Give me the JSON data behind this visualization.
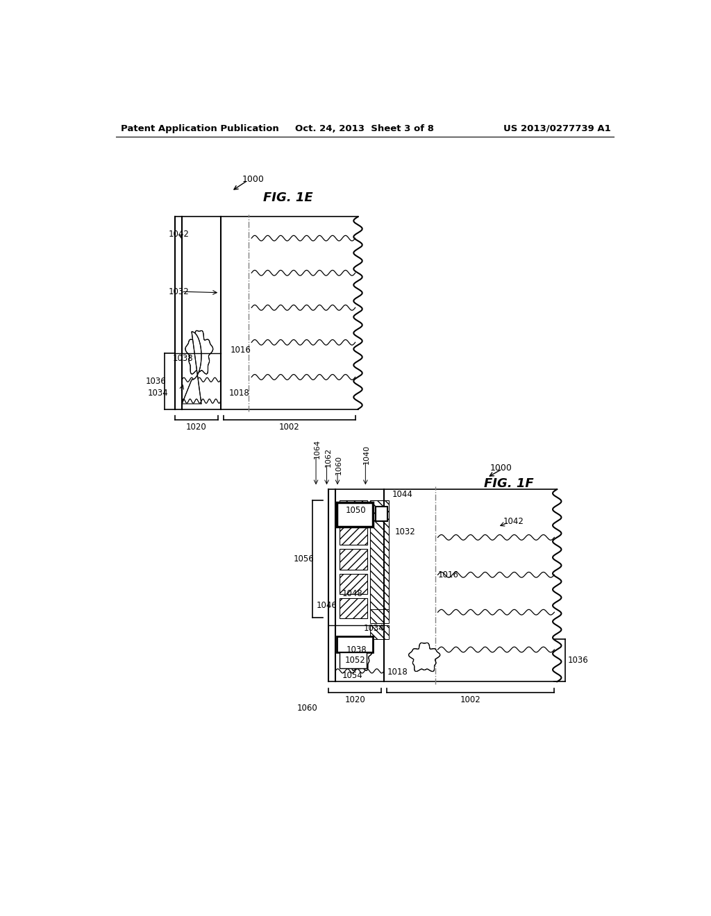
{
  "background_color": "#ffffff",
  "header_left": "Patent Application Publication",
  "header_center": "Oct. 24, 2013  Sheet 3 of 8",
  "header_right": "US 2013/0277739 A1",
  "fig1e_label": "FIG. 1E",
  "fig1f_label": "FIG. 1F"
}
